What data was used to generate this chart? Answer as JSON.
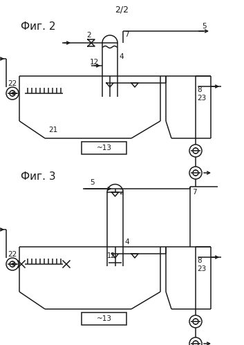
{
  "title": "2/2",
  "fig2_label": "Фиг. 2",
  "fig3_label": "Фиг. 3",
  "line_color": "#1a1a1a",
  "bg_color": "#ffffff",
  "lw": 1.1
}
